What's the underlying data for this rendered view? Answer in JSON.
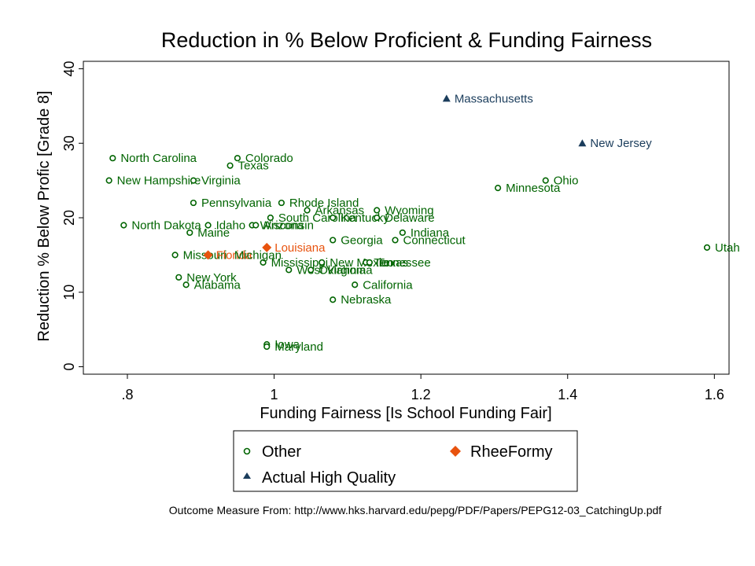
{
  "chart_data": {
    "type": "scatter",
    "title": "Reduction in % Below Proficient & Funding Fairness",
    "xlabel": "Funding Fairness [Is School Funding Fair]",
    "ylabel": "Reduction % Below Profic [Grade 8]",
    "xlim": [
      0.74,
      1.62
    ],
    "ylim": [
      -1,
      41
    ],
    "xticks": [
      0.8,
      1.0,
      1.2,
      1.4,
      1.6
    ],
    "xtick_labels": [
      ".8",
      "1",
      "1.2",
      "1.4",
      "1.6"
    ],
    "yticks": [
      0,
      10,
      20,
      30,
      40
    ],
    "ytick_labels": [
      "0",
      "10",
      "20",
      "30",
      "40"
    ],
    "grid": false,
    "legend": {
      "placement": "bottom-center",
      "items": [
        {
          "name": "Other",
          "marker": "circle-hollow",
          "color": "#006400"
        },
        {
          "name": "RheeFormy",
          "marker": "diamond",
          "color": "#e8530e"
        },
        {
          "name": "Actual High Quality",
          "marker": "triangle",
          "color": "#1b3d5c"
        }
      ]
    },
    "series": [
      {
        "name": "Other",
        "color": "#006400",
        "points": [
          {
            "label": "North Carolina",
            "x": 0.78,
            "y": 28
          },
          {
            "label": "Colorado",
            "x": 0.95,
            "y": 28
          },
          {
            "label": "Texas",
            "x": 0.94,
            "y": 27
          },
          {
            "label": "New Hampshire",
            "x": 0.775,
            "y": 25
          },
          {
            "label": "Virginia",
            "x": 0.89,
            "y": 25
          },
          {
            "label": "Pennsylvania",
            "x": 0.89,
            "y": 22
          },
          {
            "label": "Rhode Island",
            "x": 1.01,
            "y": 22
          },
          {
            "label": "Arkansas",
            "x": 1.045,
            "y": 21
          },
          {
            "label": "Wyoming",
            "x": 1.14,
            "y": 21
          },
          {
            "label": "South Carolina",
            "x": 0.995,
            "y": 20
          },
          {
            "label": "Kentucky",
            "x": 1.08,
            "y": 20
          },
          {
            "label": "Delaware",
            "x": 1.14,
            "y": 20
          },
          {
            "label": "North Dakota",
            "x": 0.795,
            "y": 19
          },
          {
            "label": "Idaho",
            "x": 0.91,
            "y": 19
          },
          {
            "label": "Wisconsin",
            "x": 0.97,
            "y": 19
          },
          {
            "label": "Arizona",
            "x": 0.975,
            "y": 19
          },
          {
            "label": "Maine",
            "x": 0.885,
            "y": 18
          },
          {
            "label": "Indiana",
            "x": 1.175,
            "y": 18
          },
          {
            "label": "Georgia",
            "x": 1.08,
            "y": 17
          },
          {
            "label": "Connecticut",
            "x": 1.165,
            "y": 17
          },
          {
            "label": "Missouri",
            "x": 0.865,
            "y": 15
          },
          {
            "label": "Mississippi",
            "x": 0.985,
            "y": 14
          },
          {
            "label": "New Mexico",
            "x": 1.065,
            "y": 14
          },
          {
            "label": "Tennessee",
            "x": 1.125,
            "y": 14
          },
          {
            "label": "Texas",
            "x": 1.13,
            "y": 14
          },
          {
            "label": "West Virginia",
            "x": 1.02,
            "y": 13
          },
          {
            "label": "Oklahoma",
            "x": 1.05,
            "y": 13
          },
          {
            "label": "New York",
            "x": 0.87,
            "y": 12
          },
          {
            "label": "Alabama",
            "x": 0.88,
            "y": 11
          },
          {
            "label": "California",
            "x": 1.11,
            "y": 11
          },
          {
            "label": "Nebraska",
            "x": 1.08,
            "y": 9
          },
          {
            "label": "Iowa",
            "x": 0.99,
            "y": 3
          },
          {
            "label": "Maryland",
            "x": 0.99,
            "y": 2.7
          },
          {
            "label": "Minnesota",
            "x": 1.305,
            "y": 24
          },
          {
            "label": "Ohio",
            "x": 1.37,
            "y": 25
          },
          {
            "label": "Utah",
            "x": 1.59,
            "y": 16
          }
        ]
      },
      {
        "name": "RheeFormy",
        "color": "#e8530e",
        "points": [
          {
            "label": "Florida",
            "x": 0.91,
            "y": 15
          },
          {
            "label": "Louisiana",
            "x": 0.99,
            "y": 16
          }
        ]
      },
      {
        "name": "Actual High Quality",
        "color": "#1b3d5c",
        "points": [
          {
            "label": "Massachusetts",
            "x": 1.235,
            "y": 36
          },
          {
            "label": "New Jersey",
            "x": 1.42,
            "y": 30
          }
        ]
      }
    ],
    "extra_labels": [
      {
        "label": "Michigan",
        "x": 0.935,
        "y": 15,
        "color": "#006400"
      }
    ]
  },
  "footnote": "Outcome Measure From: http://www.hks.harvard.edu/pepg/PDF/Papers/PEPG12-03_CatchingUp.pdf"
}
